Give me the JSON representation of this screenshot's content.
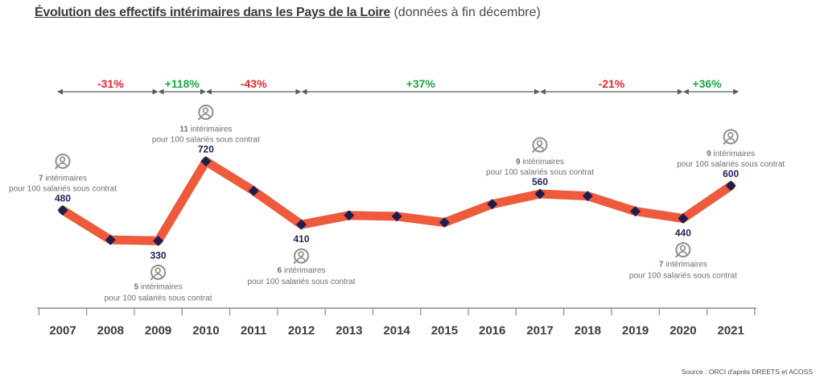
{
  "chart_data": {
    "type": "line",
    "title": "Évolution des effectifs intérimaires dans les Pays de la Loire",
    "subtitle": "(données à fin décembre)",
    "source": "Source : ORCI d'après DREETS et ACOSS",
    "x": [
      "2007",
      "2008",
      "2009",
      "2010",
      "2011",
      "2012",
      "2013",
      "2014",
      "2015",
      "2016",
      "2017",
      "2018",
      "2019",
      "2020",
      "2021"
    ],
    "y": [
      480,
      335,
      330,
      720,
      575,
      410,
      455,
      450,
      420,
      510,
      560,
      550,
      475,
      440,
      600
    ],
    "grid": false,
    "legend": false,
    "data_labels": [
      {
        "x": "2007",
        "label": "480"
      },
      {
        "x": "2009",
        "label": "330"
      },
      {
        "x": "2010",
        "label": "720"
      },
      {
        "x": "2012",
        "label": "410"
      },
      {
        "x": "2017",
        "label": "560"
      },
      {
        "x": "2020",
        "label": "440"
      },
      {
        "x": "2021",
        "label": "600"
      }
    ],
    "annotations": [
      {
        "x": "2007",
        "count": "7",
        "unit": "intérimaires",
        "detail": "pour 100 salariés sous contrat",
        "icon": "person-icon"
      },
      {
        "x": "2009",
        "count": "5",
        "unit": "intérimaires",
        "detail": "pour 100 salariés sous contrat",
        "icon": "person-icon"
      },
      {
        "x": "2010",
        "count": "11",
        "unit": "intérimaires",
        "detail": "pour 100 salariés sous contrat",
        "icon": "person-icon"
      },
      {
        "x": "2012",
        "count": "6",
        "unit": "intérimaires",
        "detail": "pour 100 salariés sous contrat",
        "icon": "person-icon"
      },
      {
        "x": "2017",
        "count": "9",
        "unit": "intérimaires",
        "detail": "pour 100 salariés sous contrat",
        "icon": "person-icon"
      },
      {
        "x": "2020",
        "count": "7",
        "unit": "intérimaires",
        "detail": "pour 100 salariés sous contrat",
        "icon": "person-icon"
      },
      {
        "x": "2021",
        "count": "9",
        "unit": "intérimaires",
        "detail": "pour 100 salariés sous contrat",
        "icon": "person-icon"
      }
    ],
    "variations": [
      {
        "from": "2007",
        "to": "2009",
        "label": "-31%"
      },
      {
        "from": "2009",
        "to": "2010",
        "label": "+118%"
      },
      {
        "from": "2010",
        "to": "2012",
        "label": "-43%"
      },
      {
        "from": "2012",
        "to": "2017",
        "label": "+37%"
      },
      {
        "from": "2017",
        "to": "2020",
        "label": "-21%"
      },
      {
        "from": "2020",
        "to": "2021",
        "label": "+36%"
      }
    ]
  },
  "colors": {
    "line": "#EE5A3C",
    "marker": "#1D1D4E",
    "negative": "#E3252D",
    "positive": "#1FA64A",
    "arrow": "#5A5A5A",
    "axis": "#8A8A8A",
    "icon": "#8E8E8E"
  }
}
